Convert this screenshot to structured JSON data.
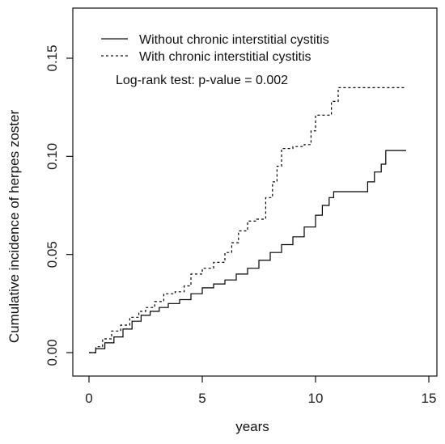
{
  "chart_data": {
    "type": "line",
    "xlabel": "years",
    "ylabel": "Cumulative incidence of herpes zoster",
    "xlim": [
      0,
      15
    ],
    "ylim": [
      0,
      0.17
    ],
    "x_ticks": [
      "0",
      "5",
      "10",
      "15"
    ],
    "y_ticks": [
      "0.00",
      "0.05",
      "0.10",
      "0.15"
    ],
    "legend_position": "top-left",
    "annotation": "Log-rank test: p-value = 0.002",
    "series": [
      {
        "name": "Without chronic interstitial cystitis",
        "style": "solid",
        "color": "#000000",
        "points": [
          [
            0,
            0
          ],
          [
            0.3,
            0.002
          ],
          [
            0.7,
            0.005
          ],
          [
            1.1,
            0.008
          ],
          [
            1.5,
            0.012
          ],
          [
            1.9,
            0.016
          ],
          [
            2.3,
            0.019
          ],
          [
            2.7,
            0.021
          ],
          [
            3.1,
            0.023
          ],
          [
            3.5,
            0.025
          ],
          [
            4.0,
            0.027
          ],
          [
            4.5,
            0.03
          ],
          [
            5.0,
            0.033
          ],
          [
            5.5,
            0.035
          ],
          [
            6.0,
            0.037
          ],
          [
            6.5,
            0.04
          ],
          [
            7.0,
            0.043
          ],
          [
            7.5,
            0.047
          ],
          [
            8.0,
            0.051
          ],
          [
            8.5,
            0.055
          ],
          [
            9.0,
            0.059
          ],
          [
            9.5,
            0.064
          ],
          [
            10.0,
            0.07
          ],
          [
            10.3,
            0.075
          ],
          [
            10.6,
            0.079
          ],
          [
            10.8,
            0.082
          ],
          [
            11.5,
            0.082
          ],
          [
            12.0,
            0.082
          ],
          [
            12.3,
            0.087
          ],
          [
            12.6,
            0.092
          ],
          [
            12.9,
            0.096
          ],
          [
            13.1,
            0.103
          ],
          [
            14.0,
            0.103
          ]
        ]
      },
      {
        "name": "With chronic interstitial cystitis",
        "style": "dashed",
        "color": "#000000",
        "points": [
          [
            0,
            0
          ],
          [
            0.3,
            0.003
          ],
          [
            0.6,
            0.007
          ],
          [
            1.0,
            0.011
          ],
          [
            1.4,
            0.014
          ],
          [
            1.8,
            0.018
          ],
          [
            2.2,
            0.021
          ],
          [
            2.5,
            0.023
          ],
          [
            2.9,
            0.026
          ],
          [
            3.3,
            0.03
          ],
          [
            3.8,
            0.031
          ],
          [
            4.2,
            0.034
          ],
          [
            4.5,
            0.04
          ],
          [
            5.0,
            0.043
          ],
          [
            5.5,
            0.046
          ],
          [
            6.0,
            0.051
          ],
          [
            6.3,
            0.056
          ],
          [
            6.6,
            0.062
          ],
          [
            7.0,
            0.067
          ],
          [
            7.4,
            0.068
          ],
          [
            7.8,
            0.079
          ],
          [
            8.1,
            0.087
          ],
          [
            8.3,
            0.095
          ],
          [
            8.5,
            0.104
          ],
          [
            9.0,
            0.105
          ],
          [
            9.5,
            0.106
          ],
          [
            9.8,
            0.113
          ],
          [
            10.0,
            0.121
          ],
          [
            10.5,
            0.121
          ],
          [
            10.7,
            0.128
          ],
          [
            11.0,
            0.135
          ],
          [
            12.0,
            0.135
          ],
          [
            14.0,
            0.135
          ]
        ]
      }
    ]
  }
}
